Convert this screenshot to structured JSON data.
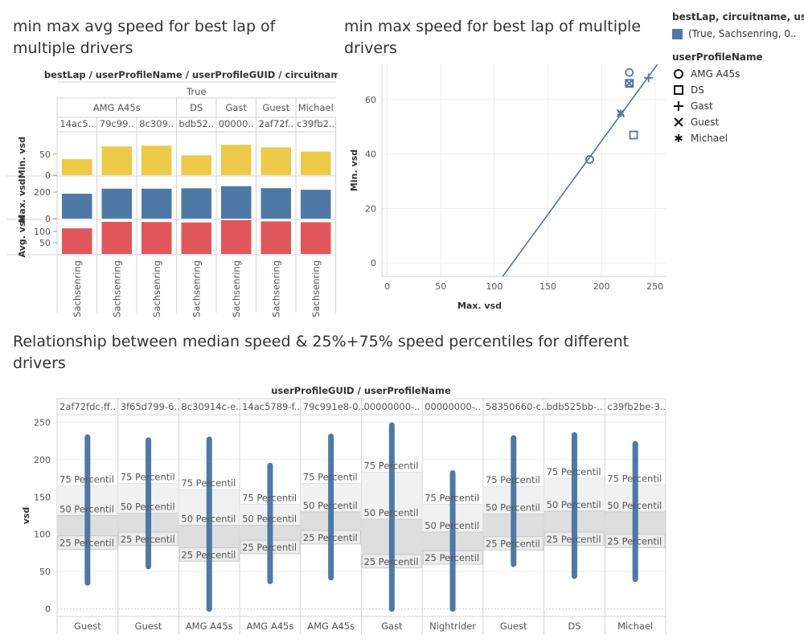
{
  "titles": {
    "chart1": "min max avg speed for best lap of multiple drivers",
    "chart2": "min max  speed for best lap of multiple drivers",
    "chart3": "Relationship between median speed & 25%+75% speed percentiles for different drivers"
  },
  "legend": {
    "color_title": "bestLap, circuitname, use..",
    "color_item": "(True, Sachsenring, 0..",
    "color_item_color": "#4e79a7",
    "shape_title": "userProfileName",
    "shapes": [
      {
        "label": "AMG A45s",
        "symbol": "circle"
      },
      {
        "label": "DS",
        "symbol": "square"
      },
      {
        "label": "Gast",
        "symbol": "plus"
      },
      {
        "label": "Guest",
        "symbol": "cross"
      },
      {
        "label": "Michael",
        "symbol": "asterisk"
      }
    ]
  },
  "chart_data": [
    {
      "type": "bar",
      "header": "bestLap / userProfileName / userProfileGUID / circuitname",
      "bestlap": "True",
      "groups": [
        {
          "name": "AMG A45s",
          "span": 3
        },
        {
          "name": "DS",
          "span": 1
        },
        {
          "name": "Gast",
          "span": 1
        },
        {
          "name": "Guest",
          "span": 1
        },
        {
          "name": "Michael",
          "span": 1
        }
      ],
      "guids": [
        "14ac5..",
        "79c99..",
        "8c309..",
        "bdb52..",
        "00000..",
        "2af72f..",
        "c39fb2.."
      ],
      "circuits": [
        "Sachsenring",
        "Sachsenring",
        "Sachsenring",
        "Sachsenring",
        "Sachsenring",
        "Sachsenring",
        "Sachsenring"
      ],
      "rows": [
        {
          "measure": "Min. vsd",
          "color": "#edc948",
          "ticks": [
            0,
            50
          ],
          "ylim": [
            0,
            80
          ],
          "values": [
            38,
            68,
            70,
            47,
            72,
            66,
            56
          ]
        },
        {
          "measure": "Max. vsd",
          "color": "#4e79a7",
          "ticks": [
            0,
            200
          ],
          "ylim": [
            0,
            255
          ],
          "values": [
            188,
            226,
            226,
            229,
            245,
            230,
            218
          ]
        },
        {
          "measure": "Avg. vsd",
          "color": "#e15759",
          "ticks": [
            50,
            100
          ],
          "ylim": [
            0,
            150
          ],
          "values": [
            114,
            143,
            142,
            140,
            150,
            145,
            141
          ]
        }
      ]
    },
    {
      "type": "scatter",
      "xlabel": "Max. vsd",
      "ylabel": "Min. vsd",
      "xlim": [
        -5,
        260
      ],
      "ylim": [
        -5,
        73
      ],
      "xticks": [
        0,
        50,
        100,
        150,
        200,
        250
      ],
      "yticks": [
        0,
        20,
        40,
        60
      ],
      "color": "#4e79a7",
      "points": [
        {
          "name": "AMG A45s",
          "symbol": "circle",
          "x": 189,
          "y": 38
        },
        {
          "name": "AMG A45s",
          "symbol": "circle",
          "x": 226,
          "y": 70
        },
        {
          "name": "AMG A45s",
          "symbol": "circle",
          "x": 226,
          "y": 66
        },
        {
          "name": "DS",
          "symbol": "square",
          "x": 226,
          "y": 66
        },
        {
          "name": "DS",
          "symbol": "square",
          "x": 230,
          "y": 47
        },
        {
          "name": "Gast",
          "symbol": "plus",
          "x": 244,
          "y": 68
        },
        {
          "name": "Guest",
          "symbol": "cross",
          "x": 226,
          "y": 66
        },
        {
          "name": "Guest",
          "symbol": "cross",
          "x": 218,
          "y": 55
        },
        {
          "name": "Michael",
          "symbol": "asterisk",
          "x": 218,
          "y": 55
        }
      ],
      "trend": {
        "x1": 117,
        "y1": 0,
        "x2": 256,
        "y2": 75
      }
    },
    {
      "type": "boxplot",
      "header": "userProfileGUID / userProfileName",
      "ylabel": "vsd",
      "ylim": [
        -10,
        260
      ],
      "yticks": [
        0,
        50,
        100,
        150,
        200,
        250
      ],
      "color": "#4e79a7",
      "band_labels": {
        "p75": "75 Percentil",
        "p50": "50 Percentil",
        "p25": "25 Percentil"
      },
      "columns": [
        {
          "guid": "2af72fdc-ff..",
          "name": "Guest",
          "min": 35,
          "max": 230,
          "p25": 98,
          "p50": 125,
          "p75": 165
        },
        {
          "guid": "3f65d799-6..",
          "name": "Guest",
          "min": 57,
          "max": 226,
          "p25": 103,
          "p50": 128,
          "p75": 168
        },
        {
          "guid": "8c30914c-e..",
          "name": "AMG A45s",
          "min": 0,
          "max": 227,
          "p25": 82,
          "p50": 112,
          "p75": 160
        },
        {
          "guid": "14ac5789-f..",
          "name": "AMG A45s",
          "min": 37,
          "max": 192,
          "p25": 92,
          "p50": 112,
          "p75": 140
        },
        {
          "guid": "79c991e8-0..",
          "name": "AMG A45s",
          "min": 42,
          "max": 231,
          "p25": 105,
          "p50": 130,
          "p75": 168
        },
        {
          "guid": "00000000-..",
          "name": "Gast",
          "min": 0,
          "max": 246,
          "p25": 73,
          "p50": 120,
          "p75": 183
        },
        {
          "guid": "00000000-..",
          "name": "Nightrider",
          "min": 0,
          "max": 182,
          "p25": 78,
          "p50": 103,
          "p75": 140
        },
        {
          "guid": "58350660-c..",
          "name": "Guest",
          "min": 60,
          "max": 229,
          "p25": 97,
          "p50": 127,
          "p75": 164
        },
        {
          "guid": "bdb525bb-..",
          "name": "DS",
          "min": 44,
          "max": 233,
          "p25": 103,
          "p50": 131,
          "p75": 175
        },
        {
          "guid": "c39fb2be-3..",
          "name": "Michael",
          "min": 40,
          "max": 221,
          "p25": 100,
          "p50": 130,
          "p75": 166
        }
      ]
    }
  ]
}
